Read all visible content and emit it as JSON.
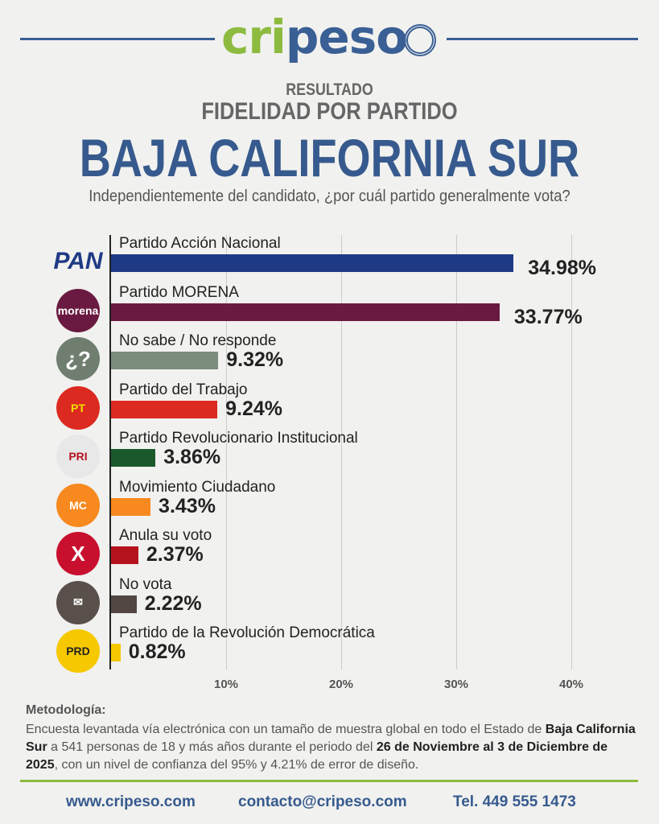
{
  "brand": {
    "logo_a": "cri",
    "logo_b": "peso"
  },
  "header": {
    "kicker": "RESULTADO",
    "title": "FIDELIDAD POR PARTIDO",
    "region": "BAJA CALIFORNIA SUR",
    "question": "Independientemente del candidato, ¿por cuál partido generalmente vota?"
  },
  "chart_data": {
    "type": "bar",
    "orientation": "horizontal",
    "xlim": [
      0,
      40
    ],
    "grid": true,
    "ticks": [
      "10%",
      "20%",
      "30%",
      "40%"
    ],
    "tick_values": [
      10,
      20,
      30,
      40
    ],
    "categories": [
      "Partido Acción Nacional",
      "Partido MORENA",
      "No sabe / No responde",
      "Partido del Trabajo",
      "Partido Revolucionario Institucional",
      "Movimiento Ciudadano",
      "Anula su voto",
      "No vota",
      "Partido de la Revolución Democrática"
    ],
    "values": [
      34.98,
      33.77,
      9.32,
      9.24,
      3.86,
      3.43,
      2.37,
      2.22,
      0.82
    ],
    "labels": [
      "34.98%",
      "33.77%",
      "9.32%",
      "9.24%",
      "3.86%",
      "3.43%",
      "2.37%",
      "2.22%",
      "0.82%"
    ],
    "colors": [
      "#1f3a85",
      "#6a1a40",
      "#7b8c7c",
      "#dc2a20",
      "#1a5a2a",
      "#f7891f",
      "#b5141e",
      "#524742",
      "#f5c800"
    ],
    "icons": [
      {
        "name": "pan-logo-icon",
        "text": "PAN"
      },
      {
        "name": "morena-logo-icon",
        "text": "morena"
      },
      {
        "name": "question-icon",
        "text": "¿?"
      },
      {
        "name": "pt-logo-icon",
        "text": "PT"
      },
      {
        "name": "pri-logo-icon",
        "text": "PRI"
      },
      {
        "name": "mc-logo-icon",
        "text": "MC"
      },
      {
        "name": "cross-icon",
        "text": "X"
      },
      {
        "name": "no-vote-icon",
        "text": "✉"
      },
      {
        "name": "prd-logo-icon",
        "text": "PRD"
      }
    ],
    "icon_bg": [
      "#ffffff",
      "#6a1a40",
      "#6f7e6f",
      "#dc2a20",
      "#e8e8e8",
      "#f7891f",
      "#c8102e",
      "#5a504b",
      "#f5c800"
    ],
    "icon_fg": [
      "#1f3a85",
      "#ffffff",
      "#ffffff",
      "#f5e000",
      "#b5141e",
      "#ffffff",
      "#ffffff",
      "#ffffff",
      "#222222"
    ]
  },
  "methodology": {
    "heading": "Metodología:",
    "p1": "Encuesta levantada vía electrónica con un tamaño de muestra global en todo el Estado de ",
    "b1": "Baja California Sur",
    "p2": " a 541 personas de 18 y más años durante el periodo del ",
    "b2": "26 de Noviembre al 3 de Diciembre de 2025",
    "p3": ", con un nivel de confianza del 95% y 4.21% de error de diseño."
  },
  "footer": {
    "web": "www.cripeso.com",
    "email": "contacto@cripeso.com",
    "phone": "Tel. 449 555 1473"
  }
}
